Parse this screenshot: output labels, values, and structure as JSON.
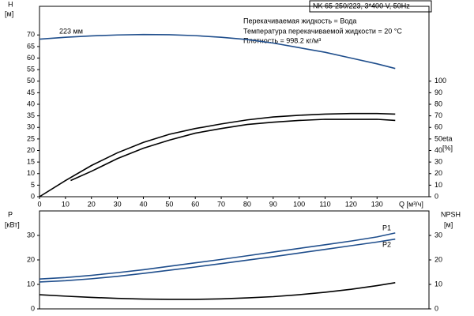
{
  "header": {
    "title": "NK 65-250/223, 3*400 V, 50Hz",
    "info": [
      "Перекачиваемая жидкость = Вода",
      "Температура перекачиваемой жидкости = 20 °C",
      "Плотность = 998.2 кг/м³"
    ]
  },
  "chart_data": [
    {
      "type": "line",
      "xlabel": "Q [м³/ч]",
      "ylabel": [
        "H",
        "[м]"
      ],
      "y2label": [
        "eta",
        "[%]"
      ],
      "annotation": "223 мм",
      "xlim": [
        0,
        150
      ],
      "xticks": [
        0,
        10,
        20,
        30,
        40,
        50,
        60,
        70,
        80,
        90,
        100,
        110,
        120,
        130
      ],
      "ylim": [
        0,
        80
      ],
      "yticks": [
        0,
        5,
        10,
        15,
        20,
        25,
        30,
        35,
        40,
        45,
        50,
        55,
        60,
        65,
        70
      ],
      "y2lim": [
        0,
        160
      ],
      "y2ticks": [
        0,
        10,
        20,
        30,
        40,
        50,
        60,
        70,
        80,
        90,
        100
      ],
      "series": [
        {
          "color": "#1f4e8c",
          "x": [
            0,
            10,
            20,
            30,
            40,
            50,
            60,
            70,
            80,
            90,
            100,
            110,
            120,
            130,
            137
          ],
          "values": [
            68.2,
            69,
            69.6,
            70,
            70.2,
            70.1,
            69.7,
            69,
            68,
            66.5,
            64.5,
            62.5,
            60,
            57.5,
            55.5
          ]
        },
        {
          "color": "#000000",
          "axis": "y2",
          "x": [
            0,
            10,
            20,
            30,
            40,
            50,
            60,
            70,
            80,
            90,
            100,
            110,
            120,
            130,
            137
          ],
          "values": [
            0,
            14,
            27,
            38,
            47,
            54,
            59,
            63,
            66.5,
            69,
            70.5,
            71.5,
            72,
            72,
            71.5
          ]
        },
        {
          "color": "#000000",
          "axis": "y2",
          "x": [
            12,
            20,
            30,
            40,
            50,
            60,
            70,
            80,
            90,
            100,
            110,
            120,
            130,
            137
          ],
          "values": [
            14,
            22,
            33,
            42,
            49,
            55,
            59,
            62.5,
            64.5,
            66,
            67,
            67,
            67,
            66
          ]
        }
      ]
    },
    {
      "type": "line",
      "ylabel": [
        "P",
        "[кВт]"
      ],
      "y2label": [
        "NPSH",
        "[м]"
      ],
      "xlim": [
        0,
        150
      ],
      "ylim": [
        0,
        40
      ],
      "yticks": [
        0,
        10,
        20,
        30
      ],
      "y2lim": [
        0,
        40
      ],
      "y2ticks": [
        0,
        10,
        20,
        30
      ],
      "series": [
        {
          "name": "P1",
          "color": "#1f4e8c",
          "x": [
            0,
            10,
            20,
            30,
            40,
            50,
            60,
            70,
            80,
            90,
            100,
            110,
            120,
            130,
            137
          ],
          "values": [
            12.2,
            12.8,
            13.7,
            14.8,
            16,
            17.4,
            18.8,
            20.2,
            21.7,
            23.2,
            24.7,
            26.2,
            27.7,
            29.4,
            31
          ]
        },
        {
          "name": "P2",
          "color": "#1f4e8c",
          "x": [
            0,
            10,
            20,
            30,
            40,
            50,
            60,
            70,
            80,
            90,
            100,
            110,
            120,
            130,
            137
          ],
          "values": [
            11,
            11.5,
            12.3,
            13.3,
            14.5,
            15.8,
            17.1,
            18.5,
            19.9,
            21.3,
            22.8,
            24.3,
            25.8,
            27.3,
            28.5
          ]
        },
        {
          "color": "#000000",
          "axis": "y2",
          "x": [
            0,
            10,
            20,
            30,
            40,
            50,
            60,
            70,
            80,
            90,
            100,
            110,
            120,
            130,
            137
          ],
          "values": [
            5.8,
            5.2,
            4.7,
            4.3,
            4,
            3.9,
            3.9,
            4.1,
            4.5,
            5,
            5.8,
            6.8,
            8,
            9.5,
            10.7
          ]
        }
      ]
    }
  ]
}
